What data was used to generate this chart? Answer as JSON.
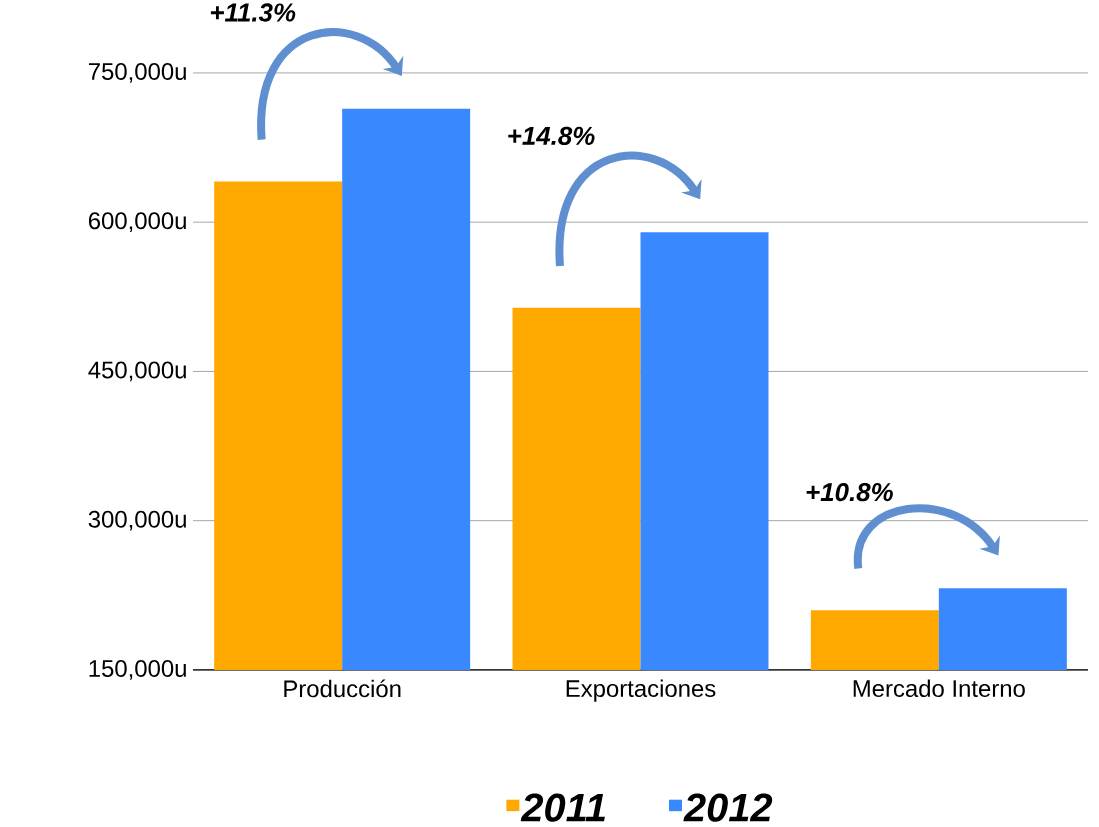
{
  "chart_data": {
    "type": "bar",
    "categories": [
      "Producción",
      "Exportaciones",
      "Mercado Interno"
    ],
    "series": [
      {
        "name": "2011",
        "color": "#ffa800",
        "values": [
          641000,
          514000,
          210000
        ]
      },
      {
        "name": "2012",
        "color": "#3a88fd",
        "values": [
          714000,
          590000,
          232000
        ]
      }
    ],
    "ylim": [
      150000,
      750000
    ],
    "yticks": [
      {
        "value": 150000,
        "label": "150,000u"
      },
      {
        "value": 300000,
        "label": "300,000u"
      },
      {
        "value": 450000,
        "label": "450,000u"
      },
      {
        "value": 600000,
        "label": "600,000u"
      },
      {
        "value": 750000,
        "label": "750,000u"
      }
    ],
    "annotations": [
      "+11.3%",
      "+14.8%",
      "+10.8%"
    ],
    "grid": "y",
    "legend": "bottom"
  }
}
